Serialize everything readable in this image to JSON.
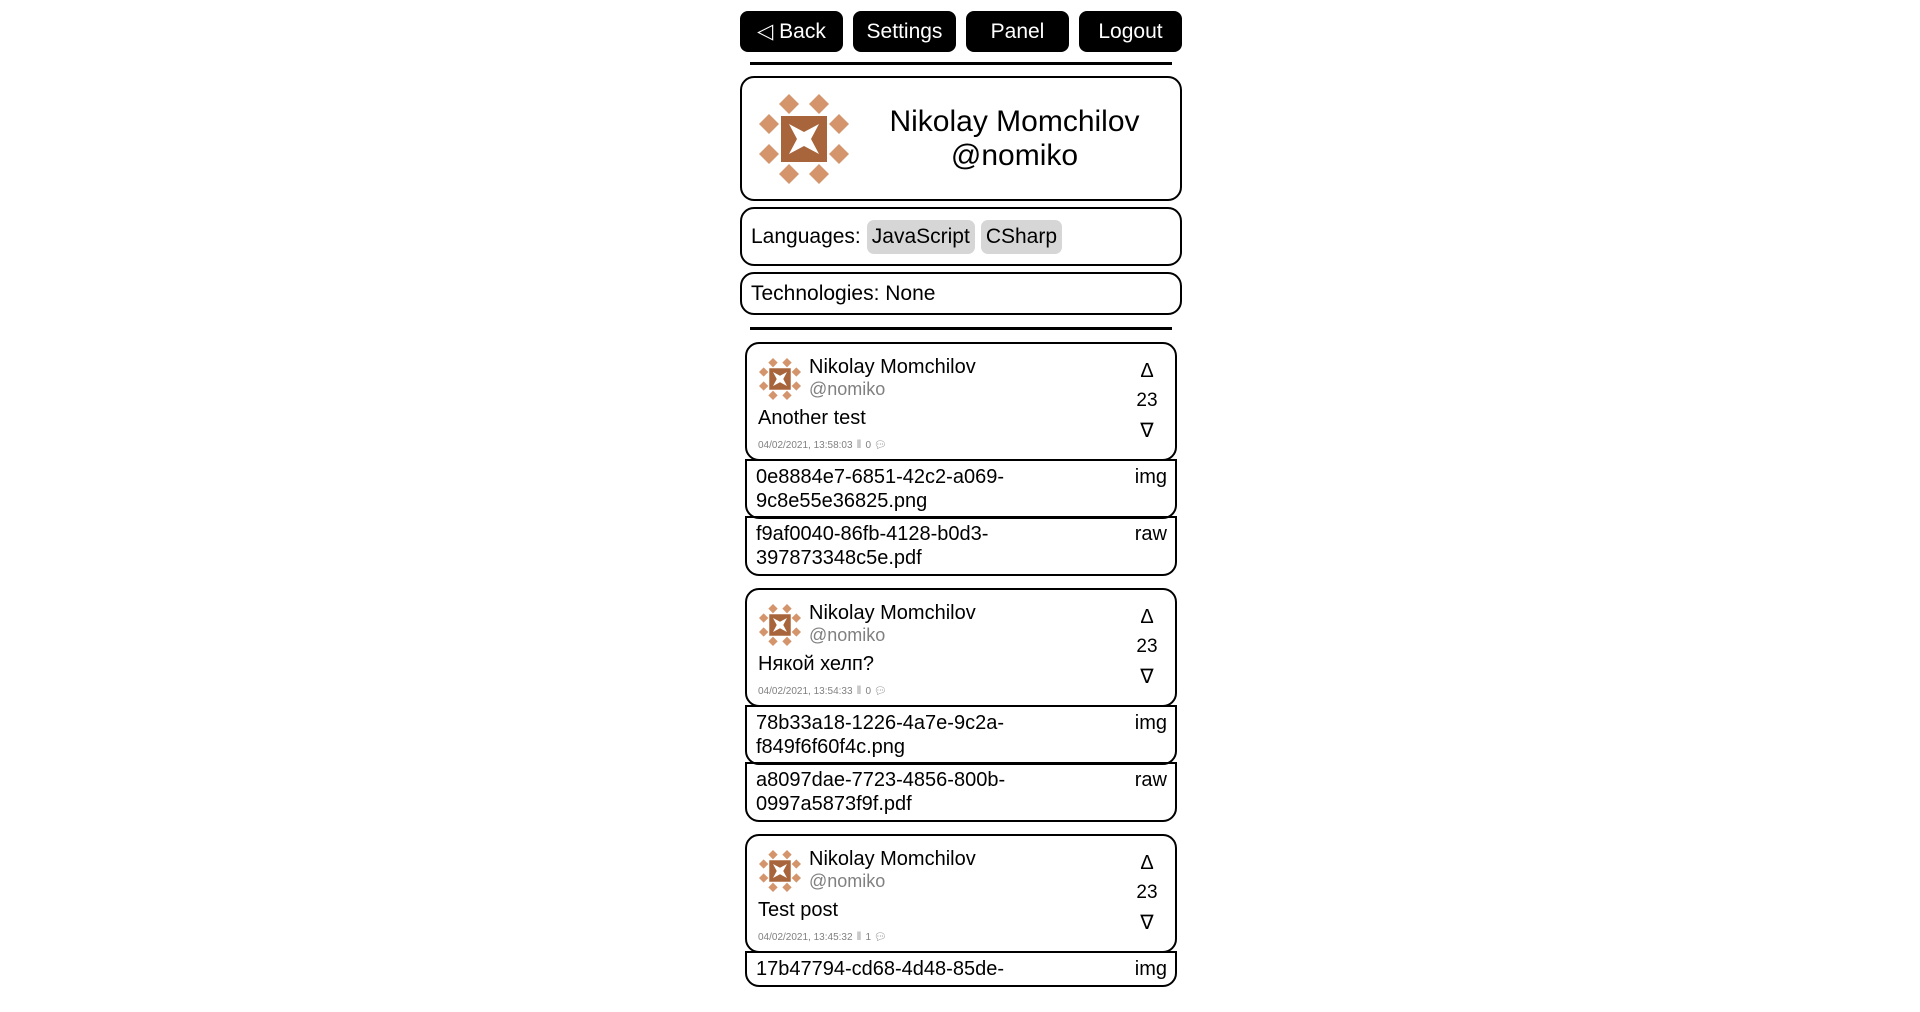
{
  "nav": {
    "back": "◁ Back",
    "settings": "Settings",
    "panel": "Panel",
    "logout": "Logout"
  },
  "profile": {
    "name": "Nikolay Momchilov",
    "handle": "@nomiko",
    "avatar_colors": {
      "dark": "#a8643a",
      "light": "#d4956d"
    }
  },
  "languages": {
    "label": "Languages:",
    "items": [
      "JavaScript",
      "CSharp"
    ]
  },
  "technologies": {
    "label": "Technologies: None"
  },
  "posts": [
    {
      "author": "Nikolay Momchilov",
      "handle": "@nomiko",
      "text": "Another test",
      "date": "04/02/2021, 13:58:03",
      "comments": "0",
      "votes": "23",
      "up": "Δ",
      "down": "∇",
      "files": [
        {
          "name": "0e8884e7-6851-42c2-a069-9c8e55e36825.png",
          "type": "img"
        },
        {
          "name": "f9af0040-86fb-4128-b0d3-397873348c5e.pdf",
          "type": "raw"
        }
      ]
    },
    {
      "author": "Nikolay Momchilov",
      "handle": "@nomiko",
      "text": "Някой хелп?",
      "date": "04/02/2021, 13:54:33",
      "comments": "0",
      "votes": "23",
      "up": "Δ",
      "down": "∇",
      "files": [
        {
          "name": "78b33a18-1226-4a7e-9c2a-f849f6f60f4c.png",
          "type": "img"
        },
        {
          "name": "a8097dae-7723-4856-800b-0997a5873f9f.pdf",
          "type": "raw"
        }
      ]
    },
    {
      "author": "Nikolay Momchilov",
      "handle": "@nomiko",
      "text": "Test post",
      "date": "04/02/2021, 13:45:32",
      "comments": "1",
      "votes": "23",
      "up": "Δ",
      "down": "∇",
      "files": [
        {
          "name": "17b47794-cd68-4d48-85de-",
          "type": "img"
        }
      ]
    }
  ]
}
